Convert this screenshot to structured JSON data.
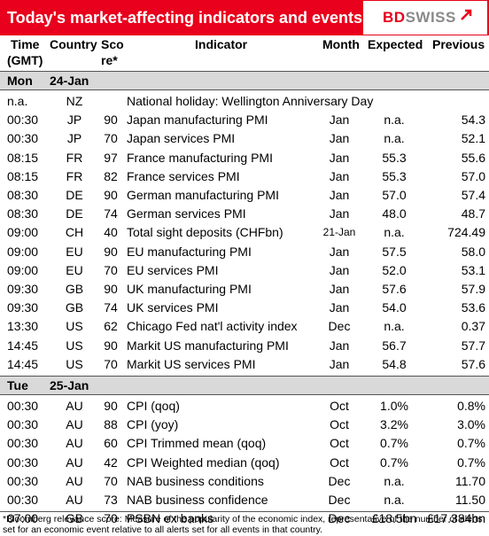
{
  "header": {
    "title": "Today's market-affecting indicators and events",
    "logo_bd": "BD",
    "logo_swiss": "SWISS"
  },
  "columns": {
    "time_1": "Time",
    "time_2": "(GMT)",
    "country": "Country",
    "score_1": "Sco",
    "score_2": "re*",
    "indicator": "Indicator",
    "month": "Month",
    "expected": "Expected",
    "previous": "Previous"
  },
  "sections": [
    {
      "day": "Mon",
      "date": "24-Jan",
      "rows": [
        {
          "time": "n.a.",
          "country": "NZ",
          "score": "",
          "indicator": "National holiday:  Wellington Anniversary Day",
          "month": "",
          "expected": "",
          "previous": ""
        },
        {
          "time": "00:30",
          "country": "JP",
          "score": "90",
          "indicator": "Japan manufacturing PMI",
          "month": "Jan",
          "expected": "n.a.",
          "previous": "54.3"
        },
        {
          "time": "00:30",
          "country": "JP",
          "score": "70",
          "indicator": "Japan services PMI",
          "month": "Jan",
          "expected": "n.a.",
          "previous": "52.1"
        },
        {
          "time": "08:15",
          "country": "FR",
          "score": "97",
          "indicator": "France manufacturing PMI",
          "month": "Jan",
          "expected": "55.3",
          "previous": "55.6"
        },
        {
          "time": "08:15",
          "country": "FR",
          "score": "82",
          "indicator": "France services PMI",
          "month": "Jan",
          "expected": "55.3",
          "previous": "57.0"
        },
        {
          "time": "08:30",
          "country": "DE",
          "score": "90",
          "indicator": "German manufacturing PMI",
          "month": "Jan",
          "expected": "57.0",
          "previous": "57.4"
        },
        {
          "time": "08:30",
          "country": "DE",
          "score": "74",
          "indicator": "German services PMI",
          "month": "Jan",
          "expected": "48.0",
          "previous": "48.7"
        },
        {
          "time": "09:00",
          "country": "CH",
          "score": "40",
          "indicator": "Total sight deposits (CHFbn)",
          "month": "21-Jan",
          "expected": "n.a.",
          "previous": "724.49"
        },
        {
          "time": "09:00",
          "country": "EU",
          "score": "90",
          "indicator": "EU manufacturing PMI",
          "month": "Jan",
          "expected": "57.5",
          "previous": "58.0"
        },
        {
          "time": "09:00",
          "country": "EU",
          "score": "70",
          "indicator": "EU services PMI",
          "month": "Jan",
          "expected": "52.0",
          "previous": "53.1"
        },
        {
          "time": "09:30",
          "country": "GB",
          "score": "90",
          "indicator": "UK manufacturing PMI",
          "month": "Jan",
          "expected": "57.6",
          "previous": "57.9"
        },
        {
          "time": "09:30",
          "country": "GB",
          "score": "74",
          "indicator": "UK services PMI",
          "month": "Jan",
          "expected": "54.0",
          "previous": "53.6"
        },
        {
          "time": "13:30",
          "country": "US",
          "score": "62",
          "indicator": "Chicago Fed nat'l activity index",
          "month": "Dec",
          "expected": "n.a.",
          "previous": "0.37"
        },
        {
          "time": "14:45",
          "country": "US",
          "score": "90",
          "indicator": "Markit US manufacturing PMI",
          "month": "Jan",
          "expected": "56.7",
          "previous": "57.7"
        },
        {
          "time": "14:45",
          "country": "US",
          "score": "70",
          "indicator": "Markit US services PMI",
          "month": "Jan",
          "expected": "54.8",
          "previous": "57.6"
        }
      ]
    },
    {
      "day": "Tue",
      "date": "25-Jan",
      "rows": [
        {
          "time": "00:30",
          "country": "AU",
          "score": "90",
          "indicator": "CPI (qoq)",
          "month": "Oct",
          "expected": "1.0%",
          "previous": "0.8%"
        },
        {
          "time": "00:30",
          "country": "AU",
          "score": "88",
          "indicator": "CPI (yoy)",
          "month": "Oct",
          "expected": "3.2%",
          "previous": "3.0%"
        },
        {
          "time": "00:30",
          "country": "AU",
          "score": "60",
          "indicator": "CPI Trimmed mean (qoq)",
          "month": "Oct",
          "expected": "0.7%",
          "previous": "0.7%"
        },
        {
          "time": "00:30",
          "country": "AU",
          "score": "42",
          "indicator": "CPI Weighted median (qoq)",
          "month": "Oct",
          "expected": "0.7%",
          "previous": "0.7%"
        },
        {
          "time": "00:30",
          "country": "AU",
          "score": "70",
          "indicator": "NAB business conditions",
          "month": "Dec",
          "expected": "n.a.",
          "previous": "11.70"
        },
        {
          "time": "00:30",
          "country": "AU",
          "score": "73",
          "indicator": "NAB business confidence",
          "month": "Dec",
          "expected": "n.a.",
          "previous": "11.50"
        },
        {
          "time": "07:00",
          "country": "GB",
          "score": "70",
          "indicator": "PSBN ex banks",
          "month": "Dec",
          "expected": "£18.5bn",
          "previous": "£17.384bn"
        }
      ]
    }
  ],
  "footnote": "*Bloomberg relevance score:  Measure of the popularity of the economic index, representative of the number of alerts set for an economic event relative to all alerts set for all events in that country."
}
